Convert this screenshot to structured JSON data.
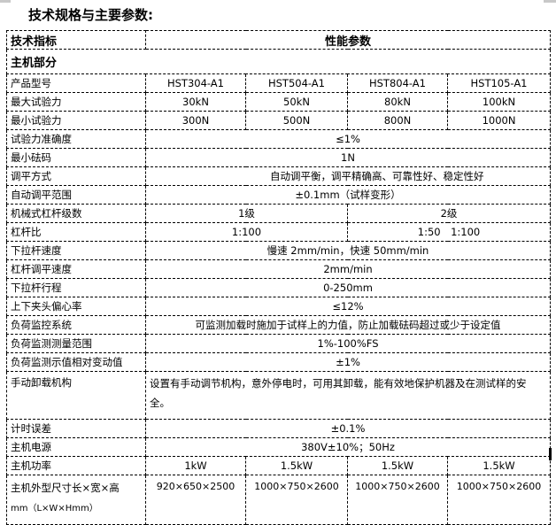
{
  "title": "技术规格与主要参数:",
  "table": {
    "header": {
      "indicator": "技术指标",
      "performance": "性能参数"
    },
    "section": "主机部分",
    "models": {
      "label": "产品型号",
      "values": [
        "HST304-A1",
        "HST504-A1",
        "HST804-A1",
        "HST105-A1"
      ]
    },
    "max_force": {
      "label": "最大试验力",
      "values": [
        "30kN",
        "50kN",
        "80kN",
        "100kN"
      ]
    },
    "min_force": {
      "label": "最小试验力",
      "values": [
        "300N",
        "500N",
        "800N",
        "1000N"
      ]
    },
    "accuracy": {
      "label": "试验力准确度",
      "value": "≤1%"
    },
    "min_weight": {
      "label": "最小砝码",
      "value": "1N"
    },
    "leveling_mode": {
      "label": "调平方式",
      "value": "自动调平衡，调平精确高、可靠性好、稳定性好"
    },
    "leveling_range": {
      "label": "自动调平范围",
      "value": "±0.1mm（试样变形）"
    },
    "lever_stages": {
      "label": "机械式杠杆级数",
      "values": [
        "1级",
        "2级"
      ]
    },
    "lever_ratio": {
      "label": "杠杆比",
      "values": [
        "1:100",
        "1:50　1:100"
      ]
    },
    "pull_speed": {
      "label": "下拉杆速度",
      "value": "慢速 2mm/min，快速 50mm/min"
    },
    "lever_speed": {
      "label": "杠杆调平速度",
      "value": "2mm/min"
    },
    "stroke": {
      "label": "下拉杆行程",
      "value": "0-250mm"
    },
    "eccentricity": {
      "label": "上下夹头偏心率",
      "value": "≤12%"
    },
    "load_monitor": {
      "label": "负荷监控系统",
      "value": "可监测加载时施加于试样上的力值，防止加载砝码超过或少于设定值"
    },
    "monitor_range": {
      "label": "负荷监测测量范围",
      "value": "1%-100%FS"
    },
    "monitor_variation": {
      "label": "负荷监测示值相对变动值",
      "value": "±1%"
    },
    "manual_unload": {
      "label": "手动卸载机构",
      "value": "设置有手动调节机构，意外停电时，可用其卸载，能有效地保护机器及在测试样的安全。"
    },
    "timing_error": {
      "label": "计时误差",
      "value": "±0.1%"
    },
    "power_supply": {
      "label": "主机电源",
      "value": "380V±10%；50Hz"
    },
    "power": {
      "label": "主机功率",
      "values": [
        "1kW",
        "1.5kW",
        "1.5kW",
        "1.5kW"
      ]
    },
    "dimensions": {
      "label": "主机外型尺寸长×宽×高",
      "label2": "mm（L×W×Hmm）",
      "values": [
        "920×650×2500",
        "1000×750×2600",
        "1000×750×2600",
        "1000×750×2600"
      ]
    }
  }
}
